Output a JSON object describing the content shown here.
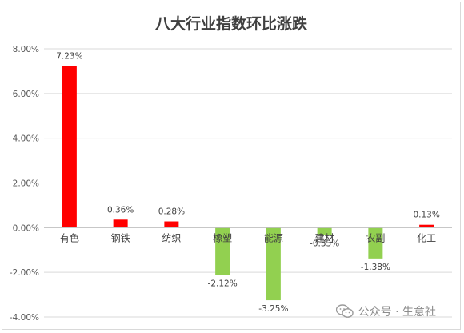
{
  "chart_data": {
    "type": "bar",
    "title": "八大行业指数环比涨跌",
    "categories": [
      "有色",
      "钢铁",
      "纺织",
      "橡塑",
      "能源",
      "建材",
      "农副",
      "化工"
    ],
    "values": [
      7.23,
      0.36,
      0.28,
      -2.12,
      -3.25,
      -0.33,
      -1.38,
      0.13
    ],
    "data_labels": [
      "7.23%",
      "0.36%",
      "0.28%",
      "-2.12%",
      "-3.25%",
      "-0.33%",
      "-1.38%",
      "0.13%"
    ],
    "ylim": [
      -4,
      8
    ],
    "yticks": [
      8,
      6,
      4,
      2,
      0,
      -2,
      -4
    ],
    "ytick_labels": [
      "8.00%",
      "6.00%",
      "4.00%",
      "2.00%",
      "0.00%",
      "-2.00%",
      "-4.00%"
    ],
    "grid": true,
    "colors": {
      "positive": "#ff0000",
      "negative": "#92d050"
    }
  },
  "watermark": {
    "text": "公众号 · 生意社",
    "icon": "wechat-icon"
  }
}
